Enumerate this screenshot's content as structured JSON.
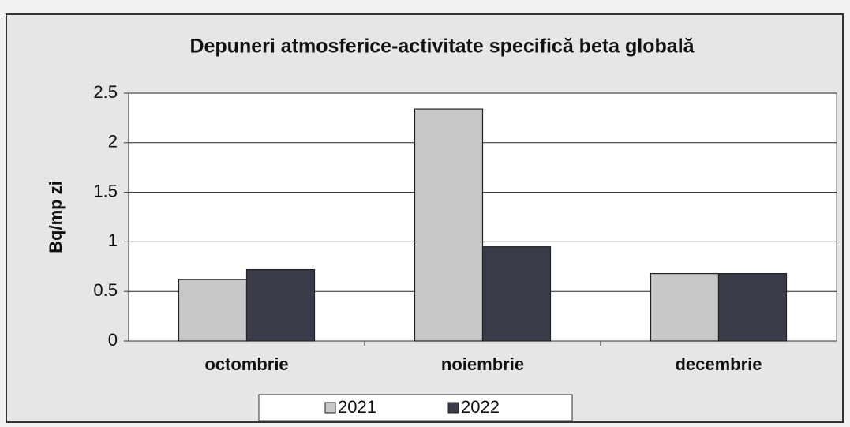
{
  "chart_data": {
    "type": "bar",
    "title": "Depuneri atmosferice-activitate specifică beta globală",
    "y_label": "Bq/mp zi",
    "categories": [
      "octombrie",
      "noiembrie",
      "decembrie"
    ],
    "series": [
      {
        "name": "2021",
        "color": "#c8c8c8",
        "values": [
          0.62,
          2.34,
          0.68
        ]
      },
      {
        "name": "2022",
        "color": "#3b3b4a",
        "values": [
          0.72,
          0.95,
          0.68
        ]
      }
    ],
    "ylim": [
      0,
      2.5
    ],
    "yticks": [
      0,
      0.5,
      1,
      1.5,
      2,
      2.5
    ],
    "grid": true,
    "legend": "bottom"
  }
}
